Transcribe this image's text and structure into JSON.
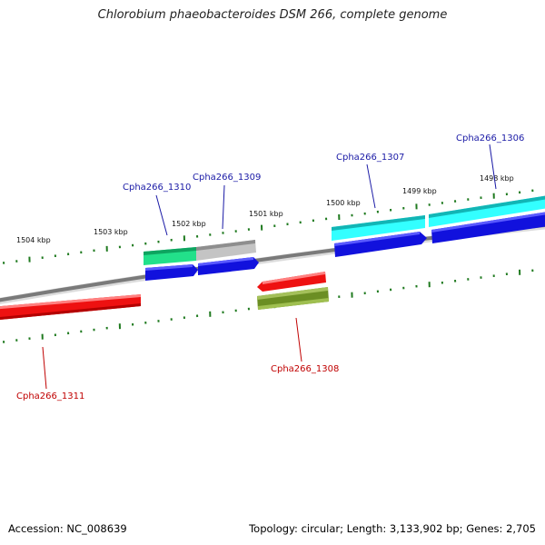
{
  "title": "Chlorobium phaeobacteroides DSM 266, complete genome",
  "footer": {
    "accession": "Accession: NC_008639",
    "topology": "Topology: circular; Length: 3,133,902 bp; Genes: 2,705"
  },
  "colors": {
    "backbone": "#7a7a7a",
    "ticks": "#1f7a1f",
    "forward_label": "#1a1aa6",
    "reverse_label": "#c00000",
    "red_gene": "#ee1111",
    "olive_gene": "#6b8e23",
    "cyan_gene": "#22dddd",
    "green_gene": "#22e08a",
    "grey_gene": "#b0b0b0",
    "blue_gene": "#1111dd"
  },
  "scale": {
    "unit": "kbp",
    "labels": [
      {
        "kbp": 1504,
        "text": "1504 kbp"
      },
      {
        "kbp": 1503,
        "text": "1503 kbp"
      },
      {
        "kbp": 1502,
        "text": "1502 kbp"
      },
      {
        "kbp": 1501,
        "text": "1501 kbp"
      },
      {
        "kbp": 1500,
        "text": "1500 kbp"
      },
      {
        "kbp": 1499,
        "text": "1499 kbp"
      },
      {
        "kbp": 1498,
        "text": "1498 kbp"
      }
    ]
  },
  "genes": [
    {
      "id": "Cpha266_1306",
      "strand": "+",
      "color": "cyan"
    },
    {
      "id": "Cpha266_1307",
      "strand": "+",
      "color": "cyan"
    },
    {
      "id": "Cpha266_1308",
      "strand": "-",
      "color": "olive"
    },
    {
      "id": "Cpha266_1309",
      "strand": "+",
      "color": "grey"
    },
    {
      "id": "Cpha266_1310",
      "strand": "+",
      "color": "green"
    },
    {
      "id": "Cpha266_1311",
      "strand": "-",
      "color": "red"
    }
  ]
}
